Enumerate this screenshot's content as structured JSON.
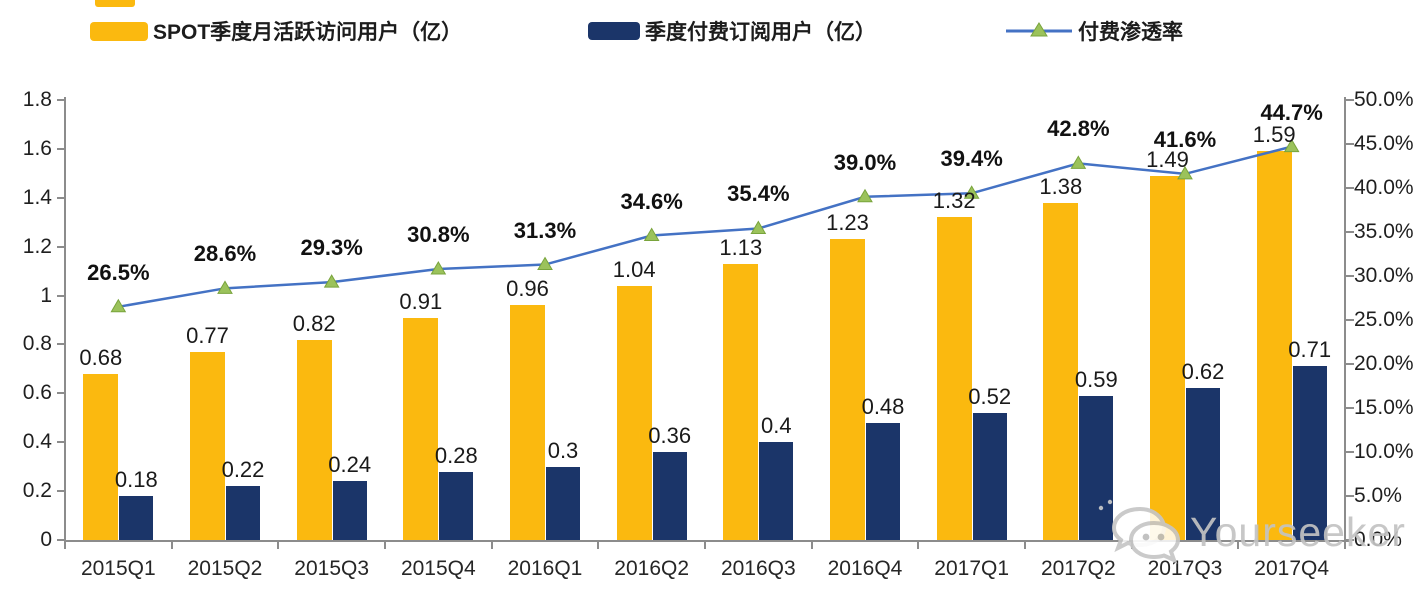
{
  "legend": {
    "items": [
      {
        "label": "SPOT季度月活跃访问用户（亿）",
        "swatch_color": "#FBB90F",
        "type": "bar"
      },
      {
        "label": "季度付费订阅用户（亿）",
        "swatch_color": "#1B3569",
        "type": "bar"
      },
      {
        "label": "付费渗透率",
        "line_color": "#4472C4",
        "marker_color": "#9BC25B",
        "type": "line"
      }
    ]
  },
  "watermark": {
    "text": "Yourseeker",
    "icon": "wechat-chat-bubbles-icon",
    "color": "#c3c3c3"
  },
  "chart_data": {
    "type": "bar+line combo",
    "categories": [
      "2015Q1",
      "2015Q2",
      "2015Q3",
      "2015Q4",
      "2016Q1",
      "2016Q2",
      "2016Q3",
      "2016Q4",
      "2017Q1",
      "2017Q2",
      "2017Q3",
      "2017Q4"
    ],
    "series": [
      {
        "name": "SPOT季度月活跃访问用户（亿）",
        "type": "bar",
        "axis": "left",
        "color": "#FBB90F",
        "values": [
          0.68,
          0.77,
          0.82,
          0.91,
          0.96,
          1.04,
          1.13,
          1.23,
          1.32,
          1.38,
          1.49,
          1.59
        ],
        "labels": [
          "0.68",
          "0.77",
          "0.82",
          "0.91",
          "0.96",
          "1.04",
          "1.13",
          "1.23",
          "1.32",
          "1.38",
          "1.49",
          "1.59"
        ]
      },
      {
        "name": "季度付费订阅用户（亿）",
        "type": "bar",
        "axis": "left",
        "color": "#1B3569",
        "values": [
          0.18,
          0.22,
          0.24,
          0.28,
          0.3,
          0.36,
          0.4,
          0.48,
          0.52,
          0.59,
          0.62,
          0.71
        ],
        "labels": [
          "0.18",
          "0.22",
          "0.24",
          "0.28",
          "0.3",
          "0.36",
          "0.4",
          "0.48",
          "0.52",
          "0.59",
          "0.62",
          "0.71"
        ]
      },
      {
        "name": "付费渗透率",
        "type": "line",
        "axis": "right",
        "color": "#4472C4",
        "marker": "triangle",
        "marker_color": "#9BC25B",
        "values": [
          26.5,
          28.6,
          29.3,
          30.8,
          31.3,
          34.6,
          35.4,
          39.0,
          39.4,
          42.8,
          41.6,
          44.7
        ],
        "labels": [
          "26.5%",
          "28.6%",
          "29.3%",
          "30.8%",
          "31.3%",
          "34.6%",
          "35.4%",
          "39.0%",
          "39.4%",
          "42.8%",
          "41.6%",
          "44.7%"
        ]
      }
    ],
    "left_axis": {
      "min": 0,
      "max": 1.8,
      "step": 0.2,
      "ticks": [
        "0",
        "0.2",
        "0.4",
        "0.6",
        "0.8",
        "1",
        "1.2",
        "1.4",
        "1.6",
        "1.8"
      ]
    },
    "right_axis": {
      "min": 0,
      "max": 50,
      "step": 5,
      "ticks": [
        "0.0%",
        "5.0%",
        "10.0%",
        "15.0%",
        "20.0%",
        "25.0%",
        "30.0%",
        "35.0%",
        "40.0%",
        "45.0%",
        "50.0%"
      ]
    },
    "grid": "none",
    "legend_position": "top"
  }
}
